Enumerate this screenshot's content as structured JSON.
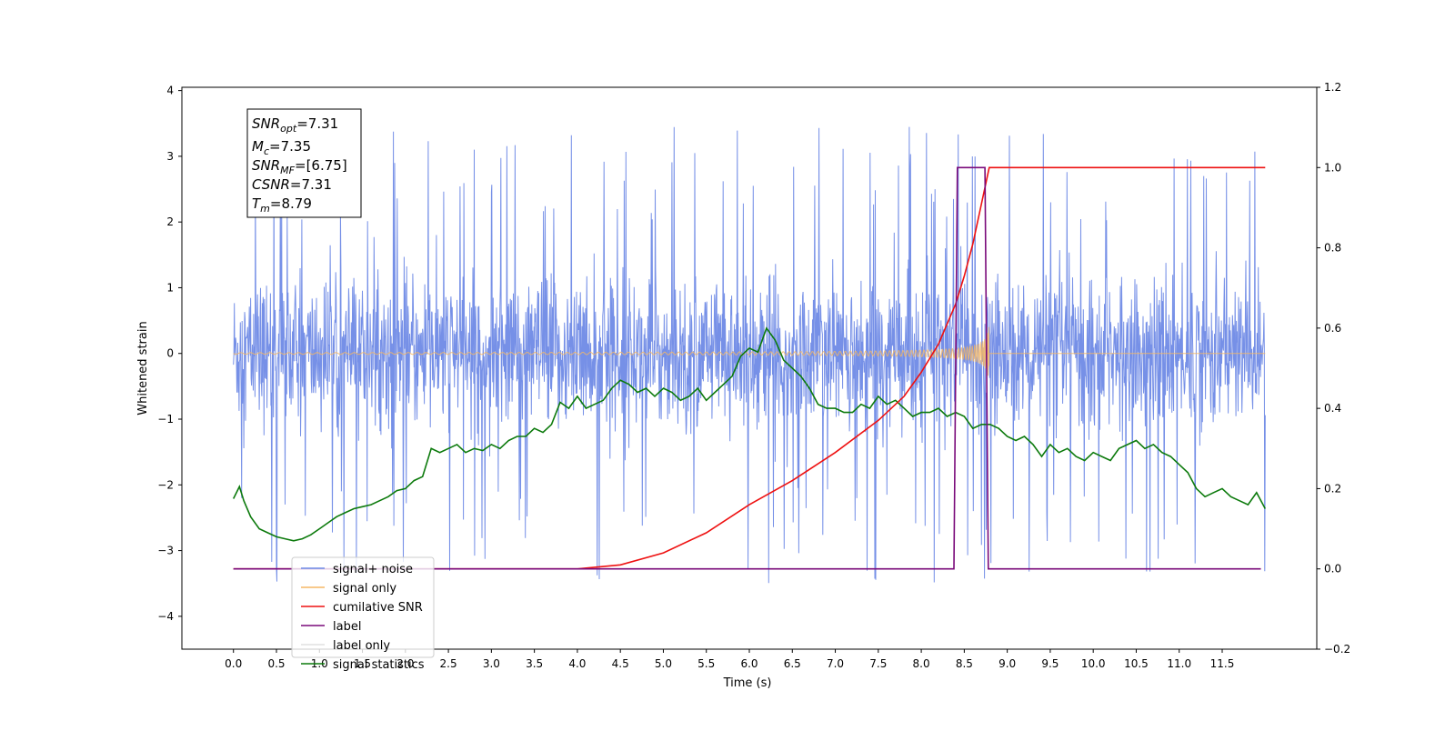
{
  "chart_data": {
    "type": "line",
    "xlabel": "Time (s)",
    "ylabel": "Whitened strain",
    "xlim": [
      -0.6,
      12.6
    ],
    "ylim_left": [
      -4.5,
      4.05
    ],
    "ylim_right": [
      -0.2,
      1.2
    ],
    "x_ticks": [
      0.0,
      0.5,
      1.0,
      1.5,
      2.0,
      2.5,
      3.0,
      3.5,
      4.0,
      4.5,
      5.0,
      5.5,
      6.0,
      6.5,
      7.0,
      7.5,
      8.0,
      8.5,
      9.0,
      9.5,
      10.0,
      10.5,
      11.0,
      11.5
    ],
    "x_tick_labels": [
      "0.0",
      "0.5",
      "1.0",
      "1.5",
      "2.0",
      "2.5",
      "3.0",
      "3.5",
      "4.0",
      "4.5",
      "5.0",
      "5.5",
      "6.0",
      "6.5",
      "7.0",
      "7.5",
      "8.0",
      "8.5",
      "9.0",
      "9.5",
      "10.0",
      "10.5",
      "11.0",
      "11.5"
    ],
    "y_left_ticks": [
      -4,
      -3,
      -2,
      -1,
      0,
      1,
      2,
      3,
      4
    ],
    "y_left_tick_labels": [
      "−4",
      "−3",
      "−2",
      "−1",
      "0",
      "1",
      "2",
      "3",
      "4"
    ],
    "y_right_ticks": [
      -0.2,
      0.0,
      0.2,
      0.4,
      0.6,
      0.8,
      1.0,
      1.2
    ],
    "y_right_tick_labels": [
      "−0.2",
      "0.0",
      "0.2",
      "0.4",
      "0.6",
      "0.8",
      "1.0",
      "1.2"
    ],
    "annotation": {
      "lines": [
        {
          "base": "SNR",
          "sub": "opt",
          "text": "=7.31"
        },
        {
          "base": "M",
          "sub": "c",
          "text": "=7.35"
        },
        {
          "base": "SNR",
          "sub": "MF",
          "text": "=[6.75]"
        },
        {
          "base": "CSNR",
          "sub": "",
          "text": "=7.31"
        },
        {
          "base": "T",
          "sub": "m",
          "text": "=8.79"
        }
      ]
    },
    "legend_position": "lower-left",
    "series": [
      {
        "name": "signal+ noise",
        "color": "#6f8ae6",
        "axis": "left",
        "description": "noise band approx ±1.4 with spikes to ±3.6, 0.0 to 12.0 s"
      },
      {
        "name": "signal only",
        "color": "#f5b765",
        "axis": "left",
        "description": "chirp growing to amplitude ~0.6 at 8.79 s, then zero"
      },
      {
        "name": "cumilative SNR",
        "color": "#ee1111",
        "axis": "right",
        "x": [
          0,
          4.0,
          4.5,
          5.0,
          5.5,
          6.0,
          6.5,
          7.0,
          7.5,
          7.8,
          8.0,
          8.2,
          8.4,
          8.5,
          8.6,
          8.7,
          8.79,
          12.0
        ],
        "y": [
          0,
          0.0,
          0.01,
          0.04,
          0.09,
          0.16,
          0.22,
          0.29,
          0.37,
          0.43,
          0.49,
          0.56,
          0.66,
          0.73,
          0.81,
          0.91,
          1.0,
          1.0
        ]
      },
      {
        "name": "label",
        "color": "#7a0a7a",
        "axis": "right",
        "x": [
          0,
          8.38,
          8.42,
          8.74,
          8.78,
          11.95
        ],
        "y": [
          0,
          0,
          1,
          1,
          0,
          0
        ]
      },
      {
        "name": "label only",
        "color": "#e0e0e0",
        "axis": "right",
        "x": [],
        "y": []
      },
      {
        "name": "signal statistics",
        "color": "#0c7a0c",
        "axis": "right",
        "x": [
          0,
          0.07,
          0.12,
          0.2,
          0.3,
          0.4,
          0.5,
          0.6,
          0.7,
          0.8,
          0.9,
          1.0,
          1.1,
          1.2,
          1.3,
          1.4,
          1.5,
          1.6,
          1.7,
          1.8,
          1.9,
          2.0,
          2.1,
          2.2,
          2.3,
          2.4,
          2.5,
          2.6,
          2.7,
          2.8,
          2.9,
          3.0,
          3.1,
          3.2,
          3.3,
          3.4,
          3.5,
          3.6,
          3.7,
          3.8,
          3.9,
          4.0,
          4.1,
          4.2,
          4.3,
          4.4,
          4.5,
          4.6,
          4.7,
          4.8,
          4.9,
          5.0,
          5.1,
          5.2,
          5.3,
          5.4,
          5.5,
          5.6,
          5.7,
          5.8,
          5.9,
          6.0,
          6.1,
          6.2,
          6.3,
          6.4,
          6.5,
          6.6,
          6.7,
          6.8,
          6.9,
          7.0,
          7.1,
          7.2,
          7.3,
          7.4,
          7.5,
          7.6,
          7.7,
          7.8,
          7.9,
          8.0,
          8.1,
          8.2,
          8.3,
          8.4,
          8.5,
          8.6,
          8.7,
          8.8,
          8.9,
          9.0,
          9.1,
          9.2,
          9.3,
          9.4,
          9.5,
          9.6,
          9.7,
          9.8,
          9.9,
          10.0,
          10.1,
          10.2,
          10.3,
          10.4,
          10.5,
          10.6,
          10.7,
          10.8,
          10.9,
          11.0,
          11.1,
          11.2,
          11.3,
          11.4,
          11.5,
          11.6,
          11.7,
          11.8,
          11.9,
          12.0
        ],
        "y": [
          0.175,
          0.205,
          0.17,
          0.13,
          0.1,
          0.09,
          0.08,
          0.075,
          0.07,
          0.075,
          0.085,
          0.1,
          0.115,
          0.13,
          0.14,
          0.15,
          0.155,
          0.16,
          0.17,
          0.18,
          0.195,
          0.2,
          0.22,
          0.23,
          0.3,
          0.29,
          0.3,
          0.31,
          0.29,
          0.3,
          0.295,
          0.31,
          0.3,
          0.32,
          0.33,
          0.33,
          0.35,
          0.34,
          0.36,
          0.415,
          0.4,
          0.43,
          0.4,
          0.41,
          0.42,
          0.45,
          0.47,
          0.46,
          0.44,
          0.45,
          0.43,
          0.45,
          0.44,
          0.42,
          0.43,
          0.45,
          0.42,
          0.44,
          0.46,
          0.48,
          0.53,
          0.55,
          0.54,
          0.6,
          0.57,
          0.52,
          0.5,
          0.48,
          0.45,
          0.41,
          0.4,
          0.4,
          0.39,
          0.39,
          0.41,
          0.4,
          0.43,
          0.41,
          0.42,
          0.4,
          0.38,
          0.39,
          0.39,
          0.4,
          0.38,
          0.39,
          0.38,
          0.35,
          0.36,
          0.36,
          0.35,
          0.33,
          0.32,
          0.33,
          0.31,
          0.28,
          0.31,
          0.29,
          0.3,
          0.28,
          0.27,
          0.29,
          0.28,
          0.27,
          0.3,
          0.31,
          0.32,
          0.3,
          0.31,
          0.29,
          0.28,
          0.26,
          0.24,
          0.2,
          0.18,
          0.19,
          0.2,
          0.18,
          0.17,
          0.16,
          0.19,
          0.15
        ]
      }
    ]
  }
}
